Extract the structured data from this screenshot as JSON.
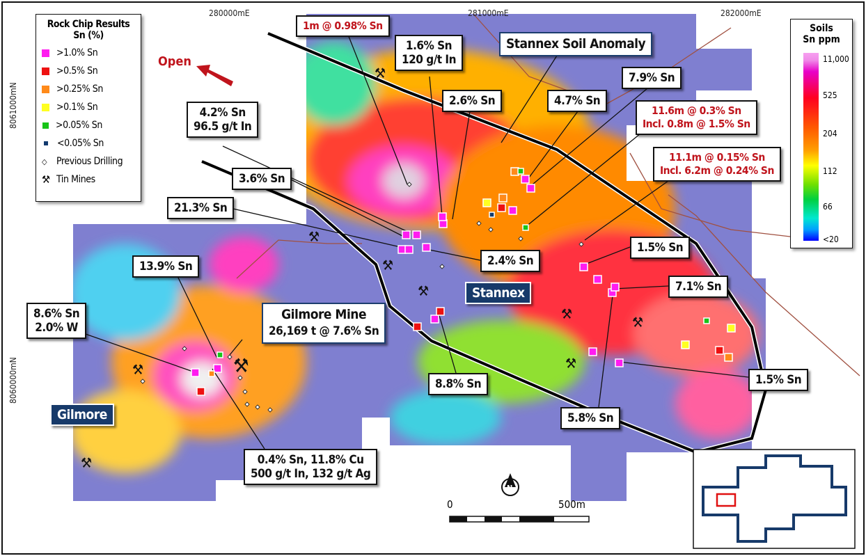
{
  "grid_labels": {
    "e1": "280000mE",
    "e2": "281000mE",
    "e3": "282000mE",
    "n1": "8061000mN",
    "n2": "8060000mN"
  },
  "legend": {
    "title": "Rock Chip Results",
    "subtitle": "Sn (%)",
    "items": [
      {
        "label": ">1.0% Sn",
        "color": "#ff1cf0"
      },
      {
        "label": ">0.5% Sn",
        "color": "#ee1111"
      },
      {
        "label": ">0.25% Sn",
        "color": "#ff8a1a"
      },
      {
        "label": ">0.1% Sn",
        "color": "#ffff22"
      },
      {
        "label": ">0.05% Sn",
        "color": "#18c418"
      },
      {
        "label": "<0.05% Sn",
        "color": "#123a6e"
      },
      {
        "label": "Previous Drilling",
        "icon": "diamond-icon"
      },
      {
        "label": "Tin Mines",
        "icon": "crossed-hammers-icon"
      }
    ]
  },
  "soils_legend": {
    "title": "Soils",
    "subtitle": "Sn ppm",
    "ticks": [
      "11,000",
      "525",
      "204",
      "112",
      "66",
      "<20"
    ]
  },
  "open_label": "Open",
  "labels": {
    "l1": "1m @ 0.98% Sn",
    "l2a": "1.6% Sn",
    "l2b": "120 g/t In",
    "anomaly": "Stannex Soil Anomaly",
    "l3": "7.9% Sn",
    "l4": "2.6% Sn",
    "l5": "4.7% Sn",
    "l6a": "4.2% Sn",
    "l6b": "96.5 g/t In",
    "l7a": "11.6m @ 0.3% Sn",
    "l7b": "Incl. 0.8m @ 1.5% Sn",
    "l8a": "11.1m @ 0.15% Sn",
    "l8b": "Incl. 6.2m @ 0.24% Sn",
    "l9": "3.6% Sn",
    "l10": "21.3% Sn",
    "l11": "1.5% Sn",
    "l12": "2.4% Sn",
    "l13": "13.9% Sn",
    "l14": "7.1% Sn",
    "stannex": "Stannex",
    "gilmore_mine": "Gilmore Mine",
    "gilmore_mine_sub": "26,169 t @ 7.6% Sn",
    "l15a": "8.6% Sn",
    "l15b": "2.0% W",
    "l16": "1.5% Sn",
    "l17": "8.8% Sn",
    "gilmore": "Gilmore",
    "l18": "5.8% Sn",
    "l19a": "0.4% Sn, 11.8% Cu",
    "l19b": "500 g/t In, 132 g/t Ag"
  },
  "scale": {
    "start": "0",
    "end": "500m"
  },
  "north": "N"
}
